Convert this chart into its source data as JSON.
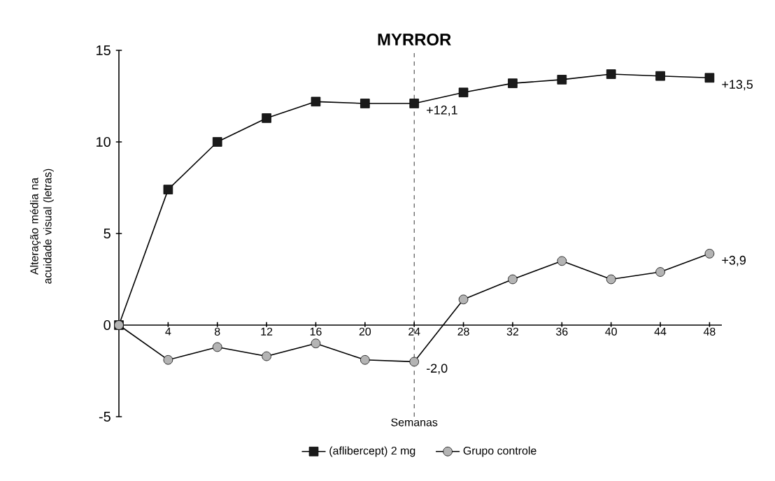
{
  "chart_data": {
    "type": "line",
    "title": "MYRROR",
    "xlabel": "Semanas",
    "ylabel": "Alteração média na acuidade visual (letras)",
    "x": [
      0,
      4,
      8,
      12,
      16,
      20,
      24,
      28,
      32,
      36,
      40,
      44,
      48
    ],
    "series": [
      {
        "name": "(aflibercept) 2 mg",
        "color": "#1a1a1a",
        "marker": "square",
        "values": [
          0,
          7.4,
          10,
          11.3,
          12.2,
          12.1,
          12.1,
          12.7,
          13.2,
          13.4,
          13.7,
          13.6,
          13.5
        ],
        "value_labels": [
          null,
          null,
          null,
          null,
          null,
          null,
          "+12,1",
          null,
          null,
          null,
          null,
          null,
          "+13,5"
        ]
      },
      {
        "name": "Grupo controle",
        "color": "#b4b4b4",
        "marker": "circle",
        "values": [
          0,
          -1.9,
          -1.2,
          -1.7,
          -1.0,
          -1.9,
          -2.0,
          1.4,
          2.5,
          3.5,
          2.5,
          2.9,
          3.9
        ],
        "value_labels": [
          null,
          null,
          null,
          null,
          null,
          null,
          "-2,0",
          null,
          null,
          null,
          null,
          null,
          "+3,9"
        ]
      }
    ],
    "xlim": [
      0,
      49
    ],
    "ylim": [
      -5,
      15
    ],
    "xticks": [
      4,
      8,
      12,
      16,
      20,
      24,
      28,
      32,
      36,
      40,
      44,
      48
    ],
    "yticks": [
      -5,
      0,
      5,
      10,
      15
    ],
    "ref_lines": [
      {
        "axis": "x",
        "value": 24,
        "line_style": "dashed"
      }
    ],
    "legend": "bottom",
    "grid": false,
    "line_style": "solid"
  }
}
